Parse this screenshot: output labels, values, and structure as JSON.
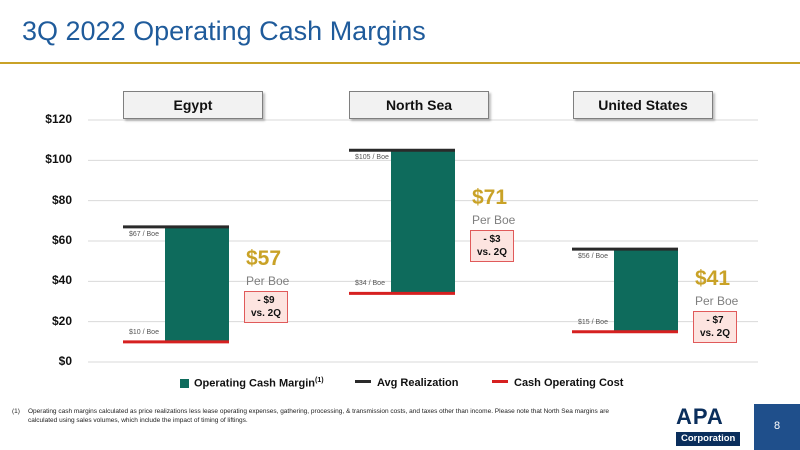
{
  "header": {
    "title": "3Q 2022 Operating Cash Margins"
  },
  "chart_data": {
    "type": "bar",
    "categories": [
      "Egypt",
      "North Sea",
      "United States"
    ],
    "ylim": [
      0,
      120
    ],
    "yticks": [
      0,
      20,
      40,
      60,
      80,
      100,
      120
    ],
    "ytick_labels": [
      "$0",
      "$20",
      "$40",
      "$60",
      "$80",
      "$100",
      "$120"
    ],
    "series": [
      {
        "name": "Operating Cash Margin",
        "superscript": "(1)",
        "color": "#0e6b5c",
        "values": [
          57,
          71,
          41
        ]
      },
      {
        "name": "Avg Realization",
        "color": "#2a2a2a",
        "values": [
          67,
          105,
          56
        ]
      },
      {
        "name": "Cash Operating Cost",
        "color": "#d62020",
        "values": [
          10,
          34,
          15
        ]
      }
    ],
    "labels": {
      "realization": [
        "$67 / Boe",
        "$105 / Boe",
        "$56 / Boe"
      ],
      "cost": [
        "$10 / Boe",
        "$34 / Boe",
        "$15 / Boe"
      ],
      "margin": [
        "$57",
        "$71",
        "$41"
      ],
      "unit": "Per Boe",
      "delta_change": [
        "- $9",
        "- $3",
        "- $7"
      ],
      "delta_period": "vs. 2Q"
    }
  },
  "footnote": {
    "marker": "(1)",
    "text": "Operating cash margins calculated as price realizations less lease operating expenses, gathering, processing, & transmission costs, and taxes other than income. Please note that North Sea margins are calculated using sales volumes, which include the impact of timing of liftings."
  },
  "logo": {
    "top": "APA",
    "bottom": "Corporation"
  },
  "page_number": "8"
}
